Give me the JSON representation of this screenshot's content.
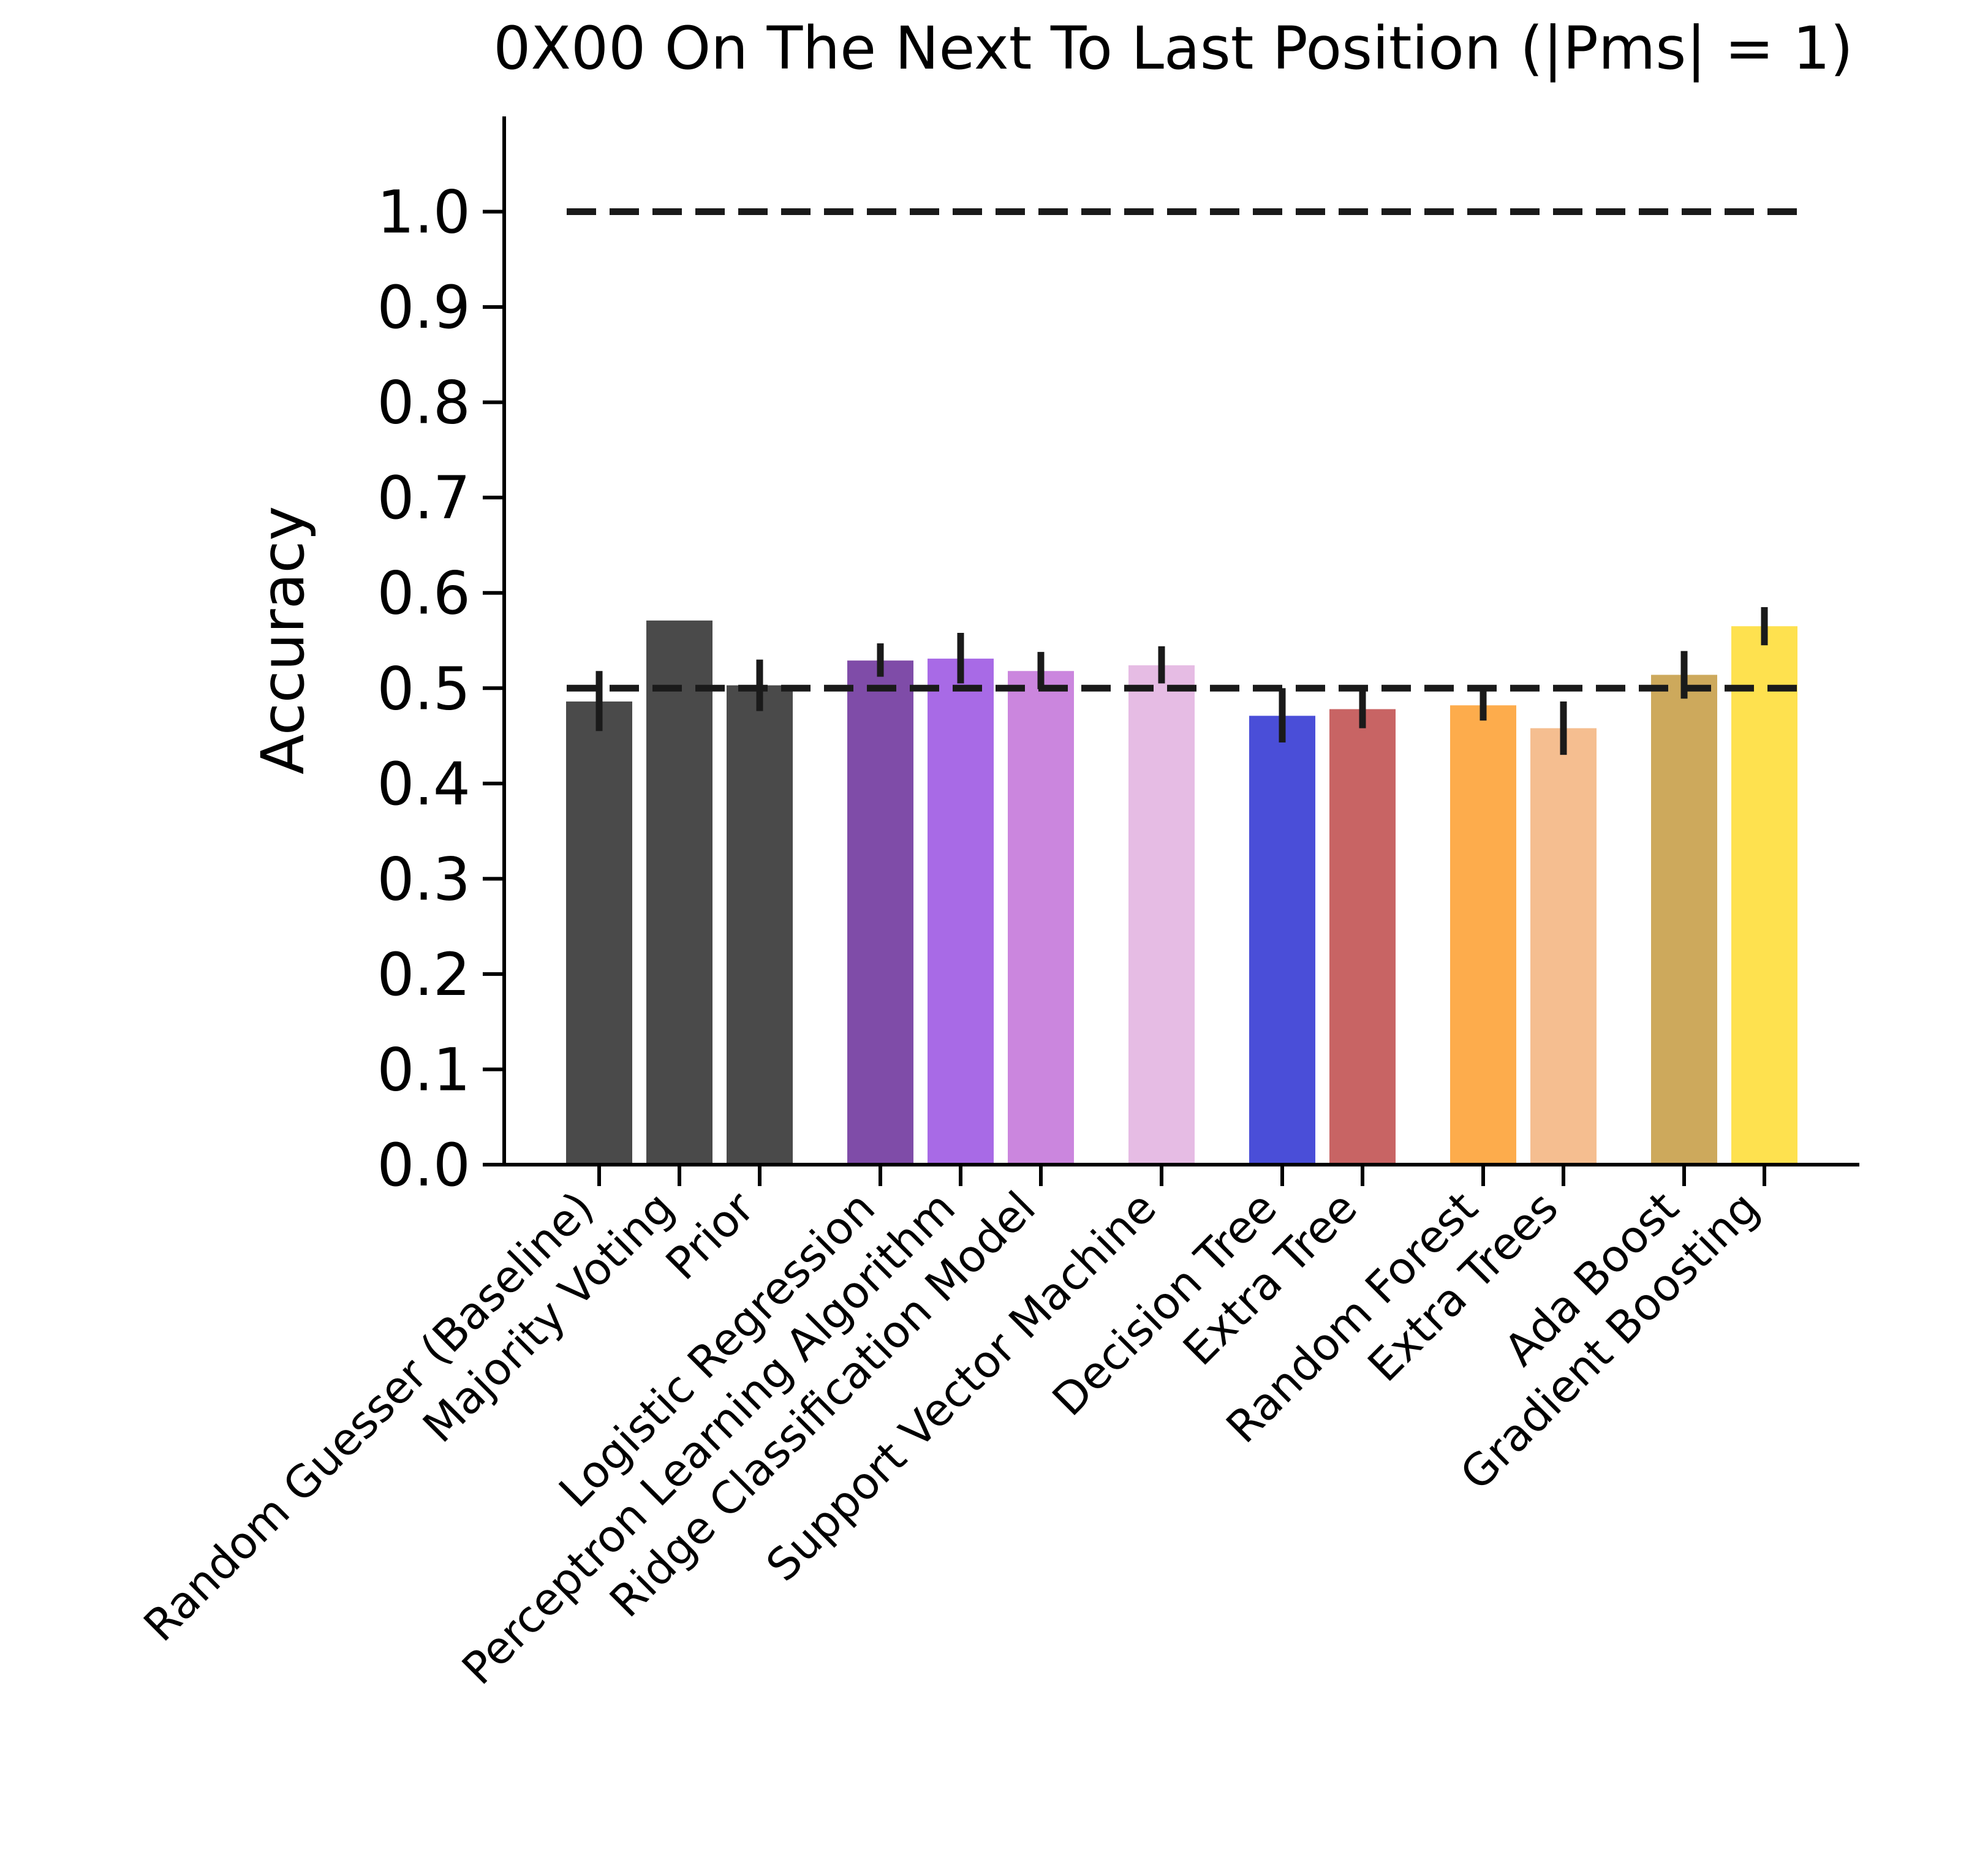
{
  "chart_data": {
    "type": "bar",
    "title": "0X00 On The Next To Last Position (|Pms| = 1)",
    "xlabel": "",
    "ylabel": "Accuracy",
    "ylim": [
      0.0,
      1.1
    ],
    "yticks": [
      "0.0",
      "0.1",
      "0.2",
      "0.3",
      "0.4",
      "0.5",
      "0.6",
      "0.7",
      "0.8",
      "0.9",
      "1.0"
    ],
    "grid": false,
    "legend": "none",
    "categories": [
      "Random Guesser (Baseline)",
      "Majority Voting",
      "Prior",
      "Logistic Regression",
      "Perceptron Learning Algorithm",
      "Ridge Classification Model",
      "Support Vector Machine",
      "Decision Tree",
      "Extra Tree",
      "Random Forest",
      "Extra Trees",
      "Ada Boost",
      "Gradient Boosting"
    ],
    "values": [
      0.486,
      0.571,
      0.503,
      0.529,
      0.531,
      0.518,
      0.524,
      0.471,
      0.478,
      0.482,
      0.458,
      0.514,
      0.565
    ],
    "error_low": [
      0.455,
      0.571,
      0.476,
      0.512,
      0.505,
      0.499,
      0.505,
      0.443,
      0.458,
      0.466,
      0.43,
      0.489,
      0.545
    ],
    "error_high": [
      0.518,
      0.571,
      0.53,
      0.547,
      0.558,
      0.538,
      0.544,
      0.5,
      0.498,
      0.498,
      0.486,
      0.539,
      0.585
    ],
    "colors": [
      "#4a4a4a",
      "#4a4a4a",
      "#4a4a4a",
      "#7f4ca8",
      "#a86ae6",
      "#cb86de",
      "#e6bce4",
      "#4a4ed8",
      "#c86464",
      "#fdac4c",
      "#f5be90",
      "#cda95c",
      "#fee14f"
    ],
    "reference_lines": [
      1.0,
      0.5
    ]
  }
}
